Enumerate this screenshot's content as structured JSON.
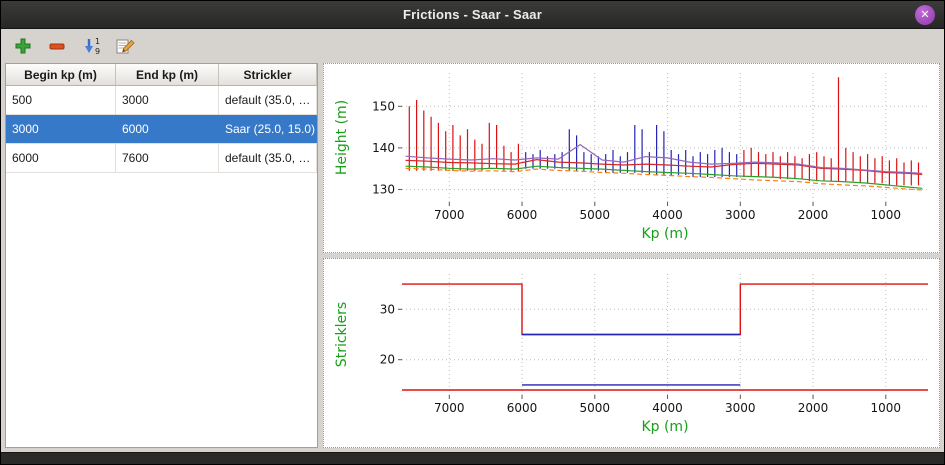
{
  "window": {
    "title": "Frictions - Saar - Saar",
    "close_glyph": "✕"
  },
  "toolbar": {
    "buttons": [
      {
        "name": "add",
        "icon": "plus-icon"
      },
      {
        "name": "remove",
        "icon": "minus-icon"
      },
      {
        "name": "sort",
        "icon": "sort-1-9-icon"
      },
      {
        "name": "edit",
        "icon": "edit-icon"
      }
    ]
  },
  "table": {
    "headers": [
      "Begin kp (m)",
      "End kp (m)",
      "Strickler"
    ],
    "rows": [
      {
        "begin": "500",
        "end": "3000",
        "strickler": "default (35.0, …",
        "selected": false
      },
      {
        "begin": "3000",
        "end": "6000",
        "strickler": "Saar (25.0, 15.0)",
        "selected": true
      },
      {
        "begin": "6000",
        "end": "7600",
        "strickler": "default (35.0, …",
        "selected": false
      }
    ]
  },
  "colors": {
    "selection": "#3579c8",
    "axis_label_green": "#18a018",
    "spike_red": "#dd1111",
    "spike_blue": "#2525b5",
    "line_red": "#d62728",
    "line_purple": "#9467bd",
    "line_green": "#2ca02c",
    "line_orange": "#ff7f0e"
  },
  "chart_data": [
    {
      "type": "line",
      "title": "",
      "xlabel": "Kp (m)",
      "ylabel": "Height (m)",
      "label_color": "#18a018",
      "xlim": [
        7650,
        420
      ],
      "ylim": [
        127,
        158
      ],
      "x_inverted": true,
      "xticks": [
        7000,
        6000,
        5000,
        4000,
        3000,
        2000,
        1000
      ],
      "yticks": [
        130,
        140,
        150
      ],
      "grid": true,
      "spike_series": [
        {
          "name": "bank-levels-default",
          "color": "#dd1111",
          "points": [
            [
              7550,
              134.5,
              150
            ],
            [
              7450,
              134.5,
              151.5
            ],
            [
              7350,
              134.5,
              149
            ],
            [
              7250,
              134.5,
              147.5
            ],
            [
              7150,
              134.5,
              146
            ],
            [
              7050,
              134.5,
              144
            ],
            [
              6950,
              134.5,
              145.5
            ],
            [
              6850,
              134.5,
              143
            ],
            [
              6750,
              134.5,
              144.5
            ],
            [
              6650,
              134.5,
              142
            ],
            [
              6550,
              134.5,
              141
            ],
            [
              6450,
              135,
              146
            ],
            [
              6350,
              135,
              145.5
            ],
            [
              6250,
              134.5,
              140.5
            ],
            [
              6150,
              134.5,
              139
            ],
            [
              6050,
              134.5,
              141
            ],
            [
              2950,
              133,
              139.5
            ],
            [
              2850,
              133,
              140
            ],
            [
              2750,
              133,
              139
            ],
            [
              2650,
              133,
              138.5
            ],
            [
              2550,
              133,
              139
            ],
            [
              2450,
              132.5,
              138
            ],
            [
              2350,
              132.5,
              139
            ],
            [
              2250,
              132.5,
              138
            ],
            [
              2150,
              132.5,
              137.5
            ],
            [
              2050,
              132,
              138.5
            ],
            [
              1950,
              132,
              139
            ],
            [
              1850,
              132,
              138
            ],
            [
              1750,
              132,
              137.5
            ],
            [
              1650,
              132,
              157
            ],
            [
              1550,
              132,
              140
            ],
            [
              1450,
              132,
              139
            ],
            [
              1350,
              131.5,
              138
            ],
            [
              1250,
              131.5,
              138.5
            ],
            [
              1150,
              131.5,
              137.5
            ],
            [
              1050,
              131.5,
              138
            ],
            [
              950,
              131,
              137
            ],
            [
              850,
              131,
              137.5
            ],
            [
              750,
              131,
              136.5
            ],
            [
              650,
              131,
              137
            ],
            [
              550,
              131,
              136.5
            ]
          ]
        },
        {
          "name": "bank-levels-saar",
          "color": "#2525b5",
          "points": [
            [
              5950,
              135,
              139
            ],
            [
              5850,
              135,
              138.5
            ],
            [
              5750,
              135,
              139.5
            ],
            [
              5650,
              135,
              138
            ],
            [
              5550,
              135,
              138.5
            ],
            [
              5450,
              135,
              139
            ],
            [
              5350,
              134.5,
              144.5
            ],
            [
              5250,
              134.5,
              143
            ],
            [
              5150,
              134.5,
              139
            ],
            [
              5050,
              134.5,
              138.5
            ],
            [
              4950,
              134.5,
              138
            ],
            [
              4850,
              134,
              138.5
            ],
            [
              4750,
              134,
              139.5
            ],
            [
              4650,
              134,
              138
            ],
            [
              4550,
              134,
              139
            ],
            [
              4450,
              134,
              145.5
            ],
            [
              4350,
              134,
              144.5
            ],
            [
              4250,
              133.5,
              139
            ],
            [
              4150,
              133.5,
              145.5
            ],
            [
              4050,
              133.5,
              144
            ],
            [
              3950,
              133.5,
              139.5
            ],
            [
              3850,
              133.5,
              138.5
            ],
            [
              3750,
              133.5,
              139.5
            ],
            [
              3650,
              133,
              138
            ],
            [
              3550,
              133,
              139
            ],
            [
              3450,
              133,
              138.5
            ],
            [
              3350,
              133,
              139.5
            ],
            [
              3250,
              133,
              140
            ],
            [
              3150,
              133,
              139
            ],
            [
              3050,
              133,
              138.5
            ]
          ]
        }
      ],
      "line_series": [
        {
          "name": "level-line-red",
          "color": "#d62728",
          "dash": false,
          "x": [
            7600,
            7300,
            7000,
            6700,
            6400,
            6100,
            5800,
            5500,
            5200,
            4900,
            4600,
            4300,
            4000,
            3700,
            3400,
            3100,
            2800,
            2500,
            2200,
            1900,
            1600,
            1300,
            1000,
            700,
            500
          ],
          "y": [
            137,
            136.8,
            136.5,
            136.4,
            136.2,
            136.1,
            137.2,
            136.6,
            136.4,
            136.1,
            135.9,
            136.1,
            135.9,
            135.6,
            135.4,
            136,
            136.3,
            136.1,
            135.9,
            135.1,
            134.9,
            134.6,
            134.1,
            133.9,
            133.6
          ]
        },
        {
          "name": "level-line-purple",
          "color": "#9467bd",
          "dash": false,
          "x": [
            7600,
            7300,
            7000,
            6700,
            6400,
            6100,
            5800,
            5500,
            5200,
            4900,
            4600,
            4300,
            4000,
            3700,
            3400,
            3100,
            2800,
            2500,
            2200,
            1900,
            1600,
            1300,
            1000,
            700,
            500
          ],
          "y": [
            138,
            137.6,
            137.3,
            137.1,
            137.4,
            137.1,
            137.6,
            137.3,
            140.8,
            137.1,
            136.6,
            137.9,
            137.6,
            136.6,
            136.1,
            136.3,
            136.6,
            136.4,
            136.1,
            135.3,
            135.1,
            134.7,
            134.3,
            134.1,
            133.9
          ]
        },
        {
          "name": "bed-line-green",
          "color": "#2ca02c",
          "dash": false,
          "x": [
            7600,
            7300,
            7000,
            6700,
            6400,
            6100,
            5800,
            5500,
            5200,
            4900,
            4600,
            4300,
            4000,
            3700,
            3400,
            3100,
            2800,
            2500,
            2200,
            1900,
            1600,
            1300,
            1000,
            700,
            500
          ],
          "y": [
            135.6,
            135.4,
            135.1,
            134.9,
            135.1,
            134.9,
            135.6,
            135.3,
            135.1,
            134.9,
            134.6,
            134.3,
            134.1,
            133.9,
            133.6,
            133.3,
            133.1,
            132.9,
            132.6,
            132.1,
            131.9,
            131.6,
            131.1,
            130.6,
            130.3
          ]
        },
        {
          "name": "bed-line-orange",
          "color": "#ff7f0e",
          "dash": true,
          "x": [
            7600,
            7300,
            7000,
            6700,
            6400,
            6100,
            5800,
            5500,
            5200,
            4900,
            4600,
            4300,
            4000,
            3700,
            3400,
            3100,
            2800,
            2500,
            2200,
            1900,
            1600,
            1300,
            1000,
            700,
            500
          ],
          "y": [
            135.1,
            134.9,
            134.6,
            134.4,
            134.5,
            134.3,
            134.9,
            134.6,
            134.4,
            134.1,
            133.9,
            133.6,
            133.4,
            133.1,
            132.9,
            132.6,
            132.3,
            132.1,
            131.9,
            131.4,
            131.1,
            130.9,
            130.5,
            130.1,
            129.9
          ]
        }
      ],
      "legend": null
    },
    {
      "type": "step",
      "title": "",
      "xlabel": "Kp (m)",
      "ylabel": "Stricklers",
      "label_color": "#18a018",
      "xlim": [
        7650,
        420
      ],
      "ylim": [
        13,
        37
      ],
      "x_inverted": true,
      "xticks": [
        7000,
        6000,
        5000,
        4000,
        3000,
        2000,
        1000
      ],
      "yticks": [
        20,
        30
      ],
      "grid": true,
      "step_series": [
        {
          "name": "strickler-main-default",
          "color": "#dd1111",
          "points": [
            [
              7650,
              35
            ],
            [
              6000,
              35
            ],
            [
              6000,
              25
            ],
            [
              3000,
              25
            ],
            [
              3000,
              35
            ],
            [
              420,
              35
            ]
          ]
        },
        {
          "name": "strickler-main-saar",
          "color": "#2525b5",
          "points": [
            [
              6000,
              25
            ],
            [
              3000,
              25
            ]
          ]
        },
        {
          "name": "strickler-floodplain-default",
          "color": "#dd1111",
          "points": [
            [
              7650,
              14
            ],
            [
              420,
              14
            ]
          ]
        },
        {
          "name": "strickler-floodplain-saar",
          "color": "#2525b5",
          "points": [
            [
              6000,
              15
            ],
            [
              3000,
              15
            ]
          ]
        }
      ],
      "legend": null
    }
  ]
}
